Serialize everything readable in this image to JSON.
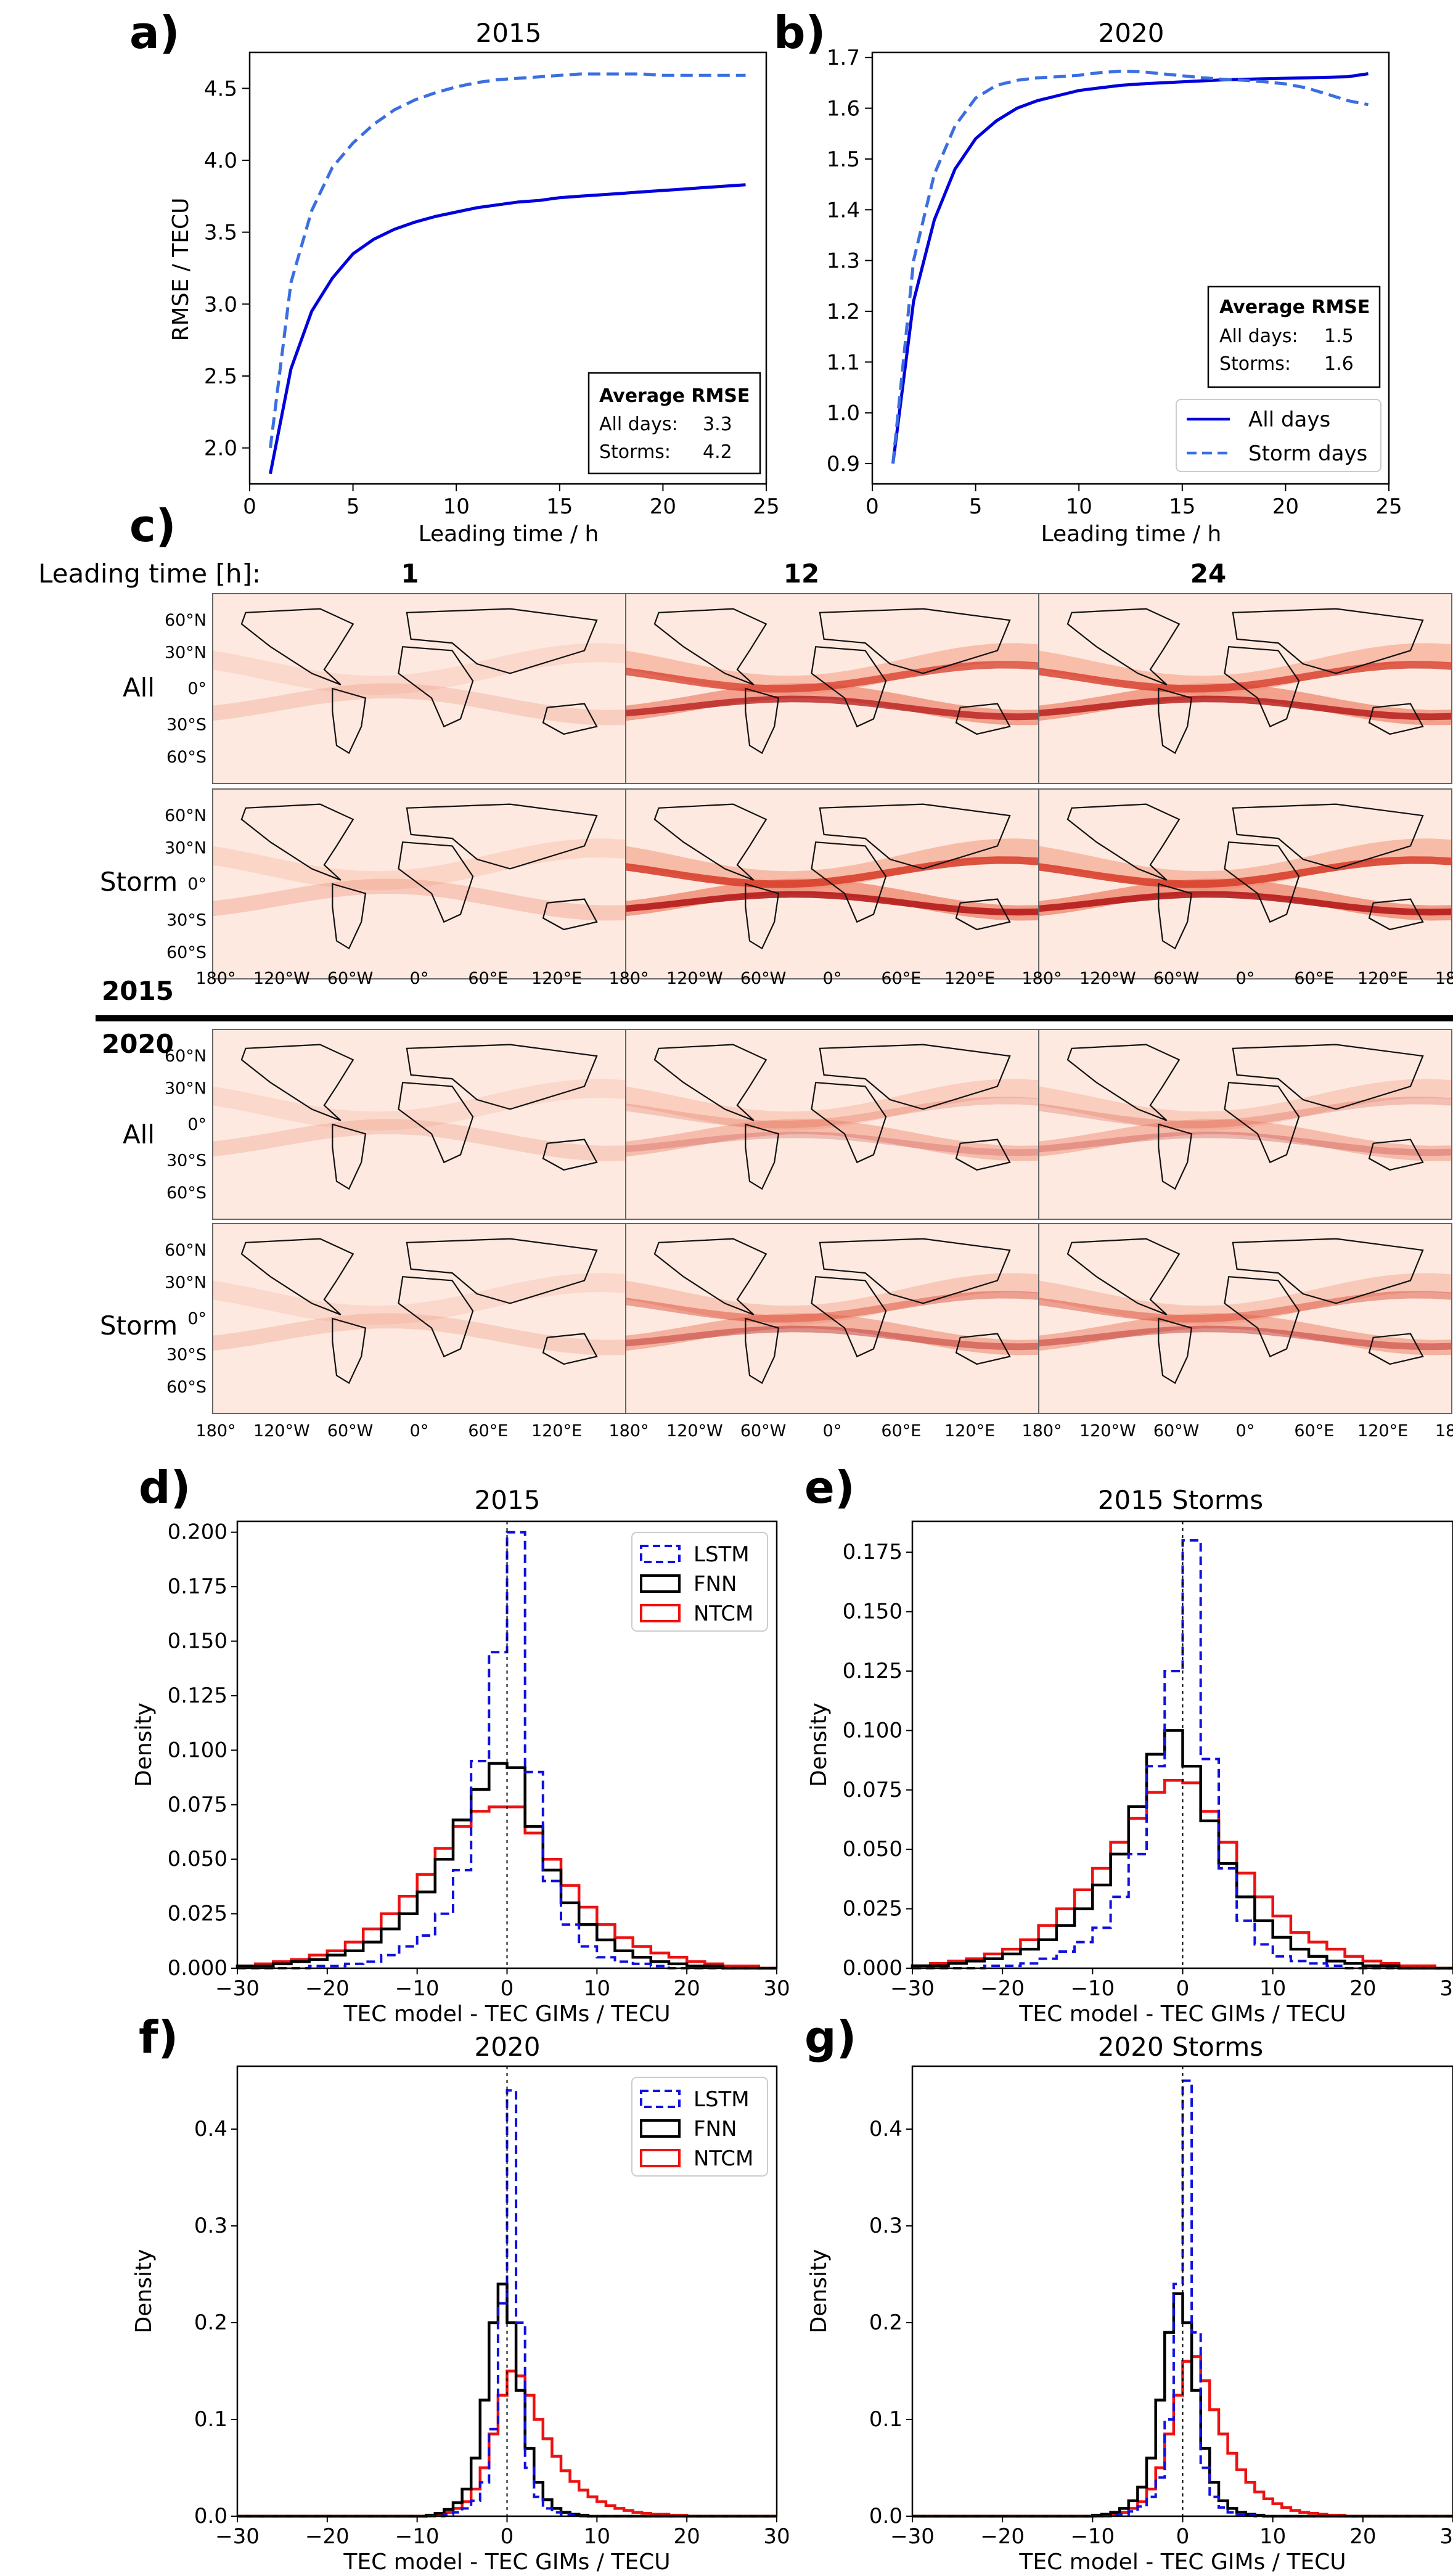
{
  "panel_a": {
    "label": "a)",
    "chart_data": {
      "type": "line",
      "title": "2015",
      "xlabel": "Leading time / h",
      "ylabel": "RMSE / TECU",
      "xlim": [
        0,
        25
      ],
      "ylim": [
        1.75,
        4.75
      ],
      "xticks": [
        "0",
        "5",
        "10",
        "15",
        "20",
        "25"
      ],
      "yticks": [
        "2.0",
        "2.5",
        "3.0",
        "3.5",
        "4.0",
        "4.5"
      ],
      "x": [
        1,
        2,
        3,
        4,
        5,
        6,
        7,
        8,
        9,
        10,
        11,
        12,
        13,
        14,
        15,
        16,
        17,
        18,
        19,
        20,
        21,
        22,
        23,
        24
      ],
      "series": [
        {
          "name": "All days",
          "color": "#0000dd",
          "style": "solid",
          "values": [
            1.82,
            2.55,
            2.95,
            3.18,
            3.35,
            3.45,
            3.52,
            3.57,
            3.61,
            3.64,
            3.67,
            3.69,
            3.71,
            3.72,
            3.74,
            3.75,
            3.76,
            3.77,
            3.78,
            3.79,
            3.8,
            3.81,
            3.82,
            3.83
          ]
        },
        {
          "name": "Storm days",
          "color": "#3b6ee0",
          "style": "dashed",
          "values": [
            2.0,
            3.15,
            3.65,
            3.95,
            4.12,
            4.25,
            4.35,
            4.42,
            4.47,
            4.51,
            4.54,
            4.56,
            4.57,
            4.58,
            4.59,
            4.6,
            4.6,
            4.6,
            4.6,
            4.59,
            4.59,
            4.59,
            4.59,
            4.59
          ]
        }
      ]
    },
    "box": {
      "title": "Average RMSE",
      "row1_label": "All days:",
      "row1_value": "3.3",
      "row2_label": "Storms:",
      "row2_value": "4.2"
    }
  },
  "panel_b": {
    "label": "b)",
    "chart_data": {
      "type": "line",
      "title": "2020",
      "xlabel": "Leading time / h",
      "ylabel": "",
      "xlim": [
        0,
        25
      ],
      "ylim": [
        0.86,
        1.71
      ],
      "xticks": [
        "0",
        "5",
        "10",
        "15",
        "20",
        "25"
      ],
      "yticks": [
        "0.9",
        "1.0",
        "1.1",
        "1.2",
        "1.3",
        "1.4",
        "1.5",
        "1.6",
        "1.7"
      ],
      "x": [
        1,
        2,
        3,
        4,
        5,
        6,
        7,
        8,
        9,
        10,
        11,
        12,
        13,
        14,
        15,
        16,
        17,
        18,
        19,
        20,
        21,
        22,
        23,
        24
      ],
      "series": [
        {
          "name": "All days",
          "color": "#0000dd",
          "style": "solid",
          "values": [
            0.9,
            1.22,
            1.38,
            1.48,
            1.54,
            1.575,
            1.6,
            1.615,
            1.625,
            1.635,
            1.64,
            1.645,
            1.648,
            1.65,
            1.652,
            1.654,
            1.656,
            1.657,
            1.658,
            1.659,
            1.66,
            1.661,
            1.662,
            1.668
          ]
        },
        {
          "name": "Storm days",
          "color": "#3b6ee0",
          "style": "dashed",
          "values": [
            0.9,
            1.3,
            1.47,
            1.565,
            1.62,
            1.645,
            1.655,
            1.66,
            1.662,
            1.665,
            1.67,
            1.673,
            1.672,
            1.668,
            1.664,
            1.66,
            1.657,
            1.655,
            1.652,
            1.648,
            1.64,
            1.628,
            1.615,
            1.607
          ]
        }
      ],
      "legend": [
        "All days",
        "Storm days"
      ],
      "legend_placement": "bottom-right"
    },
    "box": {
      "title": "Average RMSE",
      "row1_label": "All days:",
      "row1_value": "1.5",
      "row2_label": "Storms:",
      "row2_value": "1.6"
    }
  },
  "panel_c": {
    "label": "c)",
    "leading_time_label": "Leading time [h]:",
    "columns": [
      "1",
      "12",
      "24"
    ],
    "row_labels": [
      "All",
      "Storm",
      "All",
      "Storm"
    ],
    "year_labels": [
      "2015",
      "2020"
    ],
    "lat_ticks": [
      "60°N",
      "30°N",
      "0°",
      "30°S",
      "60°S"
    ],
    "lon_ticks": [
      "180°",
      "120°W",
      "60°W",
      "0°",
      "60°E",
      "120°E"
    ],
    "lon_tick_last": "18"
  },
  "hist_common": {
    "xlabel": "TEC model - TEC GIMs / TECU",
    "ylabel": "Density",
    "xticks": [
      "−30",
      "−20",
      "−10",
      "0",
      "10",
      "20",
      "30"
    ],
    "series_names": [
      "LSTM",
      "FNN",
      "NTCM"
    ],
    "colors": {
      "LSTM": "#1010e0",
      "FNN": "#000000",
      "NTCM": "#ee1111"
    }
  },
  "panel_d": {
    "label": "d)",
    "chart_data": {
      "type": "histogram",
      "title": "2015",
      "xlim": [
        -30,
        30
      ],
      "ylim": [
        0,
        0.205
      ],
      "yticks": [
        "0.000",
        "0.025",
        "0.050",
        "0.075",
        "0.100",
        "0.125",
        "0.150",
        "0.175",
        "0.200"
      ],
      "bin_width": 2,
      "bin_centers": [
        -29,
        -27,
        -25,
        -23,
        -21,
        -19,
        -17,
        -15,
        -13,
        -11,
        -9,
        -7,
        -5,
        -3,
        -1,
        1,
        3,
        5,
        7,
        9,
        11,
        13,
        15,
        17,
        19,
        21,
        23,
        25,
        27,
        29
      ],
      "series": [
        {
          "name": "LSTM",
          "values": [
            0,
            0,
            0,
            0,
            0.001,
            0.001,
            0.002,
            0.003,
            0.006,
            0.01,
            0.015,
            0.025,
            0.045,
            0.095,
            0.145,
            0.2,
            0.09,
            0.04,
            0.02,
            0.01,
            0.005,
            0.003,
            0.002,
            0.001,
            0,
            0,
            0,
            0,
            0,
            0
          ]
        },
        {
          "name": "FNN",
          "values": [
            0.001,
            0.001,
            0.002,
            0.003,
            0.004,
            0.006,
            0.008,
            0.012,
            0.018,
            0.025,
            0.035,
            0.05,
            0.068,
            0.082,
            0.094,
            0.092,
            0.065,
            0.045,
            0.03,
            0.02,
            0.013,
            0.008,
            0.005,
            0.003,
            0.002,
            0.001,
            0.001,
            0,
            0,
            0
          ]
        },
        {
          "name": "NTCM",
          "values": [
            0.001,
            0.002,
            0.003,
            0.004,
            0.006,
            0.008,
            0.012,
            0.018,
            0.025,
            0.033,
            0.043,
            0.055,
            0.065,
            0.072,
            0.074,
            0.074,
            0.062,
            0.05,
            0.038,
            0.028,
            0.02,
            0.014,
            0.01,
            0.007,
            0.005,
            0.003,
            0.002,
            0.001,
            0.001,
            0
          ]
        }
      ],
      "legend_placement": "top-right"
    }
  },
  "panel_e": {
    "label": "e)",
    "chart_data": {
      "type": "histogram",
      "title": "2015 Storms",
      "xlim": [
        -30,
        30
      ],
      "ylim": [
        0,
        0.188
      ],
      "yticks": [
        "0.000",
        "0.025",
        "0.050",
        "0.075",
        "0.100",
        "0.125",
        "0.150",
        "0.175"
      ],
      "bin_width": 2,
      "bin_centers": [
        -29,
        -27,
        -25,
        -23,
        -21,
        -19,
        -17,
        -15,
        -13,
        -11,
        -9,
        -7,
        -5,
        -3,
        -1,
        1,
        3,
        5,
        7,
        9,
        11,
        13,
        15,
        17,
        19,
        21,
        23,
        25,
        27,
        29
      ],
      "series": [
        {
          "name": "LSTM",
          "values": [
            0,
            0,
            0,
            0,
            0.001,
            0.001,
            0.002,
            0.004,
            0.007,
            0.011,
            0.017,
            0.03,
            0.048,
            0.085,
            0.125,
            0.18,
            0.088,
            0.042,
            0.02,
            0.01,
            0.005,
            0.003,
            0.002,
            0.001,
            0,
            0,
            0,
            0,
            0,
            0
          ]
        },
        {
          "name": "FNN",
          "values": [
            0.001,
            0.001,
            0.002,
            0.003,
            0.004,
            0.006,
            0.008,
            0.012,
            0.018,
            0.025,
            0.035,
            0.048,
            0.068,
            0.09,
            0.1,
            0.085,
            0.062,
            0.044,
            0.03,
            0.02,
            0.013,
            0.008,
            0.005,
            0.003,
            0.002,
            0.001,
            0.001,
            0,
            0,
            0
          ]
        },
        {
          "name": "NTCM",
          "values": [
            0.001,
            0.002,
            0.003,
            0.004,
            0.006,
            0.008,
            0.012,
            0.018,
            0.025,
            0.033,
            0.042,
            0.053,
            0.063,
            0.074,
            0.079,
            0.078,
            0.066,
            0.053,
            0.04,
            0.03,
            0.022,
            0.015,
            0.011,
            0.008,
            0.005,
            0.003,
            0.002,
            0.001,
            0.001,
            0
          ]
        }
      ]
    }
  },
  "panel_f": {
    "label": "f)",
    "chart_data": {
      "type": "histogram",
      "title": "2020",
      "xlim": [
        -30,
        30
      ],
      "ylim": [
        0,
        0.465
      ],
      "yticks": [
        "0.0",
        "0.1",
        "0.2",
        "0.3",
        "0.4"
      ],
      "bin_width": 1,
      "bin_centers": [
        -29.5,
        -28.5,
        -27.5,
        -26.5,
        -25.5,
        -24.5,
        -23.5,
        -22.5,
        -21.5,
        -20.5,
        -19.5,
        -18.5,
        -17.5,
        -16.5,
        -15.5,
        -14.5,
        -13.5,
        -12.5,
        -11.5,
        -10.5,
        -9.5,
        -8.5,
        -7.5,
        -6.5,
        -5.5,
        -4.5,
        -3.5,
        -2.5,
        -1.5,
        -0.5,
        0.5,
        1.5,
        2.5,
        3.5,
        4.5,
        5.5,
        6.5,
        7.5,
        8.5,
        9.5,
        10.5,
        11.5,
        12.5,
        13.5,
        14.5,
        15.5,
        16.5,
        17.5,
        18.5,
        19.5,
        20.5,
        21.5,
        22.5,
        23.5,
        24.5,
        25.5,
        26.5,
        27.5,
        28.5,
        29.5
      ],
      "series": [
        {
          "name": "LSTM",
          "values": [
            0,
            0,
            0,
            0,
            0,
            0,
            0,
            0,
            0,
            0,
            0,
            0,
            0,
            0,
            0,
            0,
            0,
            0,
            0,
            0,
            0,
            0,
            0,
            0.002,
            0.004,
            0.008,
            0.016,
            0.035,
            0.09,
            0.22,
            0.44,
            0.2,
            0.05,
            0.02,
            0.008,
            0.004,
            0.002,
            0.001,
            0,
            0,
            0,
            0,
            0,
            0,
            0,
            0,
            0,
            0,
            0,
            0,
            0,
            0,
            0,
            0,
            0,
            0,
            0,
            0,
            0,
            0
          ]
        },
        {
          "name": "FNN",
          "values": [
            0,
            0,
            0,
            0,
            0,
            0,
            0,
            0,
            0,
            0,
            0,
            0,
            0,
            0,
            0,
            0,
            0,
            0,
            0,
            0,
            0,
            0.001,
            0.003,
            0.007,
            0.014,
            0.028,
            0.06,
            0.12,
            0.2,
            0.24,
            0.2,
            0.13,
            0.07,
            0.035,
            0.017,
            0.008,
            0.004,
            0.002,
            0.001,
            0,
            0,
            0,
            0,
            0,
            0,
            0,
            0,
            0,
            0,
            0,
            0,
            0,
            0,
            0,
            0,
            0,
            0,
            0,
            0,
            0
          ]
        },
        {
          "name": "NTCM",
          "values": [
            0,
            0,
            0,
            0,
            0,
            0,
            0,
            0,
            0,
            0,
            0,
            0,
            0,
            0,
            0,
            0,
            0,
            0,
            0,
            0,
            0,
            0.001,
            0.002,
            0.004,
            0.008,
            0.015,
            0.028,
            0.05,
            0.085,
            0.125,
            0.15,
            0.145,
            0.125,
            0.1,
            0.08,
            0.062,
            0.047,
            0.036,
            0.027,
            0.02,
            0.015,
            0.011,
            0.008,
            0.006,
            0.004,
            0.003,
            0.002,
            0.002,
            0.001,
            0.001,
            0,
            0,
            0,
            0,
            0,
            0,
            0,
            0,
            0,
            0
          ]
        }
      ]
    }
  },
  "panel_g": {
    "label": "g)",
    "chart_data": {
      "type": "histogram",
      "title": "2020 Storms",
      "xlim": [
        -30,
        30
      ],
      "ylim": [
        0,
        0.465
      ],
      "yticks": [
        "0.0",
        "0.1",
        "0.2",
        "0.3",
        "0.4"
      ],
      "bin_width": 1,
      "bin_centers": [
        -29.5,
        -28.5,
        -27.5,
        -26.5,
        -25.5,
        -24.5,
        -23.5,
        -22.5,
        -21.5,
        -20.5,
        -19.5,
        -18.5,
        -17.5,
        -16.5,
        -15.5,
        -14.5,
        -13.5,
        -12.5,
        -11.5,
        -10.5,
        -9.5,
        -8.5,
        -7.5,
        -6.5,
        -5.5,
        -4.5,
        -3.5,
        -2.5,
        -1.5,
        -0.5,
        0.5,
        1.5,
        2.5,
        3.5,
        4.5,
        5.5,
        6.5,
        7.5,
        8.5,
        9.5,
        10.5,
        11.5,
        12.5,
        13.5,
        14.5,
        15.5,
        16.5,
        17.5,
        18.5,
        19.5,
        20.5,
        21.5,
        22.5,
        23.5,
        24.5,
        25.5,
        26.5,
        27.5,
        28.5,
        29.5
      ],
      "series": [
        {
          "name": "LSTM",
          "values": [
            0,
            0,
            0,
            0,
            0,
            0,
            0,
            0,
            0,
            0,
            0,
            0,
            0,
            0,
            0,
            0,
            0,
            0,
            0,
            0,
            0,
            0,
            0.001,
            0.002,
            0.005,
            0.01,
            0.02,
            0.04,
            0.1,
            0.24,
            0.45,
            0.19,
            0.05,
            0.02,
            0.009,
            0.004,
            0.002,
            0.001,
            0,
            0,
            0,
            0,
            0,
            0,
            0,
            0,
            0,
            0,
            0,
            0,
            0,
            0,
            0,
            0,
            0,
            0,
            0,
            0,
            0,
            0
          ]
        },
        {
          "name": "FNN",
          "values": [
            0,
            0,
            0,
            0,
            0,
            0,
            0,
            0,
            0,
            0,
            0,
            0,
            0,
            0,
            0,
            0,
            0,
            0,
            0,
            0,
            0.001,
            0.002,
            0.004,
            0.008,
            0.016,
            0.03,
            0.06,
            0.12,
            0.19,
            0.23,
            0.2,
            0.13,
            0.07,
            0.035,
            0.016,
            0.008,
            0.004,
            0.002,
            0.001,
            0,
            0,
            0,
            0,
            0,
            0,
            0,
            0,
            0,
            0,
            0,
            0,
            0,
            0,
            0,
            0,
            0,
            0,
            0,
            0,
            0
          ]
        },
        {
          "name": "NTCM",
          "values": [
            0,
            0,
            0,
            0,
            0,
            0,
            0,
            0,
            0,
            0,
            0,
            0,
            0,
            0,
            0,
            0,
            0,
            0,
            0,
            0,
            0,
            0.001,
            0.002,
            0.004,
            0.008,
            0.015,
            0.028,
            0.05,
            0.085,
            0.125,
            0.16,
            0.165,
            0.14,
            0.11,
            0.085,
            0.065,
            0.048,
            0.035,
            0.025,
            0.018,
            0.013,
            0.009,
            0.006,
            0.004,
            0.003,
            0.002,
            0.001,
            0.001,
            0,
            0,
            0,
            0,
            0,
            0,
            0,
            0,
            0,
            0,
            0,
            0
          ]
        }
      ]
    }
  }
}
